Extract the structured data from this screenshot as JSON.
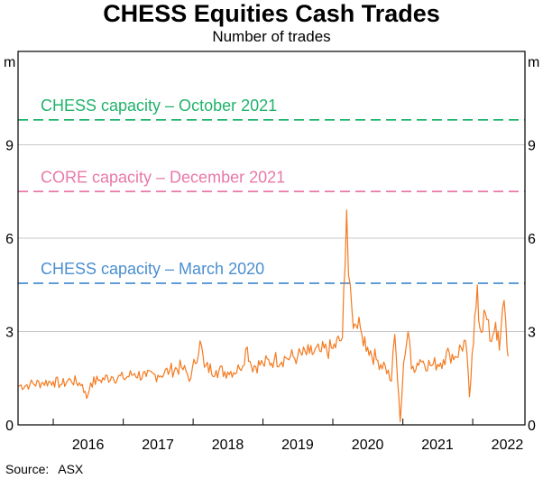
{
  "title": "CHESS Equities Cash Trades",
  "subtitle": "Number of trades",
  "source": {
    "label": "Source:",
    "value": "ASX"
  },
  "chart_data": {
    "type": "line",
    "title": "CHESS Equities Cash Trades",
    "subtitle": "Number of trades",
    "unit_left": "m",
    "unit_right": "m",
    "ylim": [
      0,
      12
    ],
    "yticks": [
      0,
      3,
      6,
      9
    ],
    "xlim": [
      "2015-07-01",
      "2022-10-01"
    ],
    "xticks": [
      {
        "label": "2016",
        "x": "2016-07-01"
      },
      {
        "label": "2017",
        "x": "2017-07-01"
      },
      {
        "label": "2018",
        "x": "2018-07-01"
      },
      {
        "label": "2019",
        "x": "2019-07-01"
      },
      {
        "label": "2020",
        "x": "2020-07-01"
      },
      {
        "label": "2021",
        "x": "2021-07-01"
      },
      {
        "label": "2022",
        "x": "2022-07-01"
      }
    ],
    "year_boundaries": [
      "2016-01-01",
      "2017-01-01",
      "2018-01-01",
      "2019-01-01",
      "2020-01-01",
      "2021-01-01",
      "2022-01-01"
    ],
    "grid": true,
    "reference_lines": [
      {
        "label": "CHESS capacity – October 2021",
        "value": 9.8,
        "color": "#1fb36b"
      },
      {
        "label": "CORE capacity – December 2021",
        "value": 7.5,
        "color": "#e879a8"
      },
      {
        "label": "CHESS capacity – March 2020",
        "value": 4.55,
        "color": "#4a8fd0"
      }
    ],
    "series": [
      {
        "color": "#f47a20",
        "points": [
          [
            "2015-07-01",
            1.25
          ],
          [
            "2015-09-01",
            1.3
          ],
          [
            "2015-11-01",
            1.35
          ],
          [
            "2016-01-01",
            1.4
          ],
          [
            "2016-02-15",
            1.3
          ],
          [
            "2016-04-01",
            1.45
          ],
          [
            "2016-06-01",
            1.3
          ],
          [
            "2016-06-24",
            0.85
          ],
          [
            "2016-07-15",
            1.35
          ],
          [
            "2016-09-01",
            1.45
          ],
          [
            "2016-11-01",
            1.55
          ],
          [
            "2017-01-01",
            1.5
          ],
          [
            "2017-03-01",
            1.65
          ],
          [
            "2017-05-01",
            1.55
          ],
          [
            "2017-07-01",
            1.6
          ],
          [
            "2017-09-01",
            1.75
          ],
          [
            "2017-11-01",
            1.85
          ],
          [
            "2017-12-20",
            1.5
          ],
          [
            "2018-02-06",
            2.7
          ],
          [
            "2018-03-01",
            1.85
          ],
          [
            "2018-05-01",
            1.75
          ],
          [
            "2018-07-01",
            1.7
          ],
          [
            "2018-09-01",
            1.8
          ],
          [
            "2018-10-11",
            2.5
          ],
          [
            "2018-11-01",
            1.9
          ],
          [
            "2019-01-01",
            1.95
          ],
          [
            "2019-03-01",
            2.1
          ],
          [
            "2019-05-01",
            2.15
          ],
          [
            "2019-07-01",
            2.2
          ],
          [
            "2019-09-01",
            2.3
          ],
          [
            "2019-11-01",
            2.35
          ],
          [
            "2020-01-01",
            2.45
          ],
          [
            "2020-02-20",
            2.8
          ],
          [
            "2020-03-05",
            5.1
          ],
          [
            "2020-03-13",
            6.9
          ],
          [
            "2020-03-23",
            4.8
          ],
          [
            "2020-04-10",
            3.7
          ],
          [
            "2020-05-01",
            3.2
          ],
          [
            "2020-06-01",
            2.9
          ],
          [
            "2020-07-01",
            2.5
          ],
          [
            "2020-08-15",
            2.1
          ],
          [
            "2020-10-01",
            1.9
          ],
          [
            "2020-11-02",
            1.4
          ],
          [
            "2020-11-20",
            2.9
          ],
          [
            "2020-12-18",
            0.1
          ],
          [
            "2021-01-05",
            2.0
          ],
          [
            "2021-01-28",
            3.0
          ],
          [
            "2021-02-15",
            1.8
          ],
          [
            "2021-04-01",
            2.1
          ],
          [
            "2021-06-01",
            1.9
          ],
          [
            "2021-08-01",
            2.1
          ],
          [
            "2021-09-01",
            2.3
          ],
          [
            "2021-10-01",
            2.2
          ],
          [
            "2021-11-25",
            2.7
          ],
          [
            "2021-12-15",
            0.9
          ],
          [
            "2022-01-05",
            2.6
          ],
          [
            "2022-01-25",
            4.5
          ],
          [
            "2022-02-08",
            3.1
          ],
          [
            "2022-03-08",
            3.6
          ],
          [
            "2022-04-01",
            2.7
          ],
          [
            "2022-05-01",
            3.3
          ],
          [
            "2022-05-20",
            2.4
          ],
          [
            "2022-06-14",
            4.0
          ],
          [
            "2022-06-30",
            2.4
          ],
          [
            "2022-07-05",
            2.2
          ]
        ]
      }
    ]
  }
}
